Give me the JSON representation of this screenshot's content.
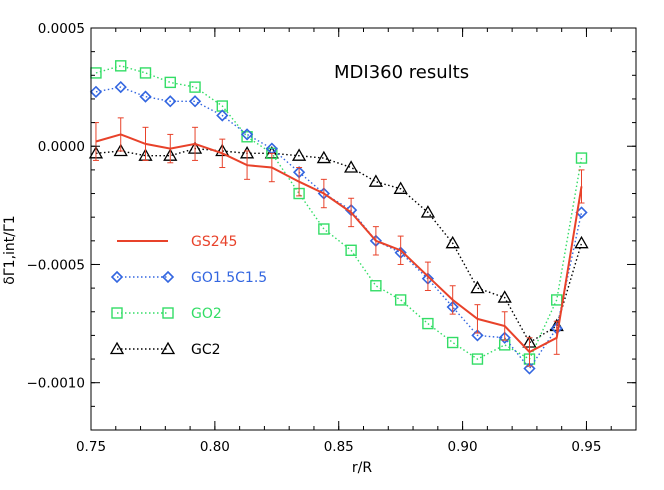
{
  "chart_data": {
    "type": "line",
    "title": "MDI360 results",
    "xlabel": "r/R",
    "ylabel": "δΓ1,int/Γ1",
    "xlim": [
      0.75,
      0.97
    ],
    "ylim": [
      -0.0012,
      0.0005
    ],
    "x_ticks": [
      0.75,
      0.8,
      0.85,
      0.9,
      0.95
    ],
    "x_tick_labels": [
      "0.75",
      "0.80",
      "0.85",
      "0.90",
      "0.95"
    ],
    "y_ticks": [
      0.0005,
      0.0,
      -0.0005,
      -0.001
    ],
    "y_tick_labels": [
      "0.0005",
      "0.0000",
      "−0.0005",
      "−0.0010"
    ],
    "legend_position": "left",
    "series": [
      {
        "name": "GS245",
        "color": "#e8422a",
        "style": "solid",
        "marker": "none",
        "x": [
          0.752,
          0.762,
          0.772,
          0.782,
          0.792,
          0.803,
          0.813,
          0.823,
          0.834,
          0.844,
          0.855,
          0.865,
          0.875,
          0.886,
          0.896,
          0.906,
          0.917,
          0.927,
          0.938,
          0.948
        ],
        "y": [
          2e-05,
          5e-05,
          1e-05,
          -1e-05,
          1e-05,
          -3e-05,
          -8e-05,
          -9e-05,
          -0.00015,
          -0.0002,
          -0.00028,
          -0.0004,
          -0.00044,
          -0.00055,
          -0.00065,
          -0.00073,
          -0.00076,
          -0.00087,
          -0.00081,
          -0.00017
        ],
        "error": [
          8e-05,
          7e-05,
          7e-05,
          6e-05,
          7e-05,
          6e-05,
          6e-05,
          6e-05,
          6e-05,
          6e-05,
          6e-05,
          6e-05,
          6e-05,
          6e-05,
          6e-05,
          6e-05,
          6e-05,
          6e-05,
          7e-05,
          7e-05
        ]
      },
      {
        "name": "GO1.5C1.5",
        "color": "#3366e0",
        "style": "dotted",
        "marker": "diamond",
        "x": [
          0.752,
          0.762,
          0.772,
          0.782,
          0.792,
          0.803,
          0.813,
          0.823,
          0.834,
          0.844,
          0.855,
          0.865,
          0.875,
          0.886,
          0.896,
          0.906,
          0.917,
          0.927,
          0.938,
          0.948
        ],
        "y": [
          0.00023,
          0.00025,
          0.00021,
          0.00019,
          0.00019,
          0.00013,
          5e-05,
          -1e-05,
          -0.00011,
          -0.0002,
          -0.00027,
          -0.0004,
          -0.00045,
          -0.00056,
          -0.00068,
          -0.0008,
          -0.00081,
          -0.00094,
          -0.00077,
          -0.00028
        ]
      },
      {
        "name": "GO2",
        "color": "#33dd66",
        "style": "dotted",
        "marker": "square",
        "x": [
          0.752,
          0.762,
          0.772,
          0.782,
          0.792,
          0.803,
          0.813,
          0.823,
          0.834,
          0.844,
          0.855,
          0.865,
          0.875,
          0.886,
          0.896,
          0.906,
          0.917,
          0.927,
          0.938,
          0.948
        ],
        "y": [
          0.00031,
          0.00034,
          0.00031,
          0.00027,
          0.00025,
          0.00017,
          4e-05,
          -3e-05,
          -0.0002,
          -0.00035,
          -0.00044,
          -0.00059,
          -0.00065,
          -0.00075,
          -0.00083,
          -0.0009,
          -0.00084,
          -0.0009,
          -0.00065,
          -5e-05
        ]
      },
      {
        "name": "GC2",
        "color": "#000000",
        "style": "dotted",
        "marker": "triangle",
        "x": [
          0.752,
          0.762,
          0.772,
          0.782,
          0.792,
          0.803,
          0.813,
          0.823,
          0.834,
          0.844,
          0.855,
          0.865,
          0.875,
          0.886,
          0.896,
          0.906,
          0.917,
          0.927,
          0.938,
          0.948
        ],
        "y": [
          -3e-05,
          -2e-05,
          -4e-05,
          -4e-05,
          -1e-05,
          -2e-05,
          -3e-05,
          -3e-05,
          -4e-05,
          -5e-05,
          -9e-05,
          -0.00015,
          -0.00018,
          -0.00028,
          -0.00041,
          -0.0006,
          -0.00064,
          -0.00083,
          -0.00076,
          -0.00041
        ]
      }
    ]
  }
}
